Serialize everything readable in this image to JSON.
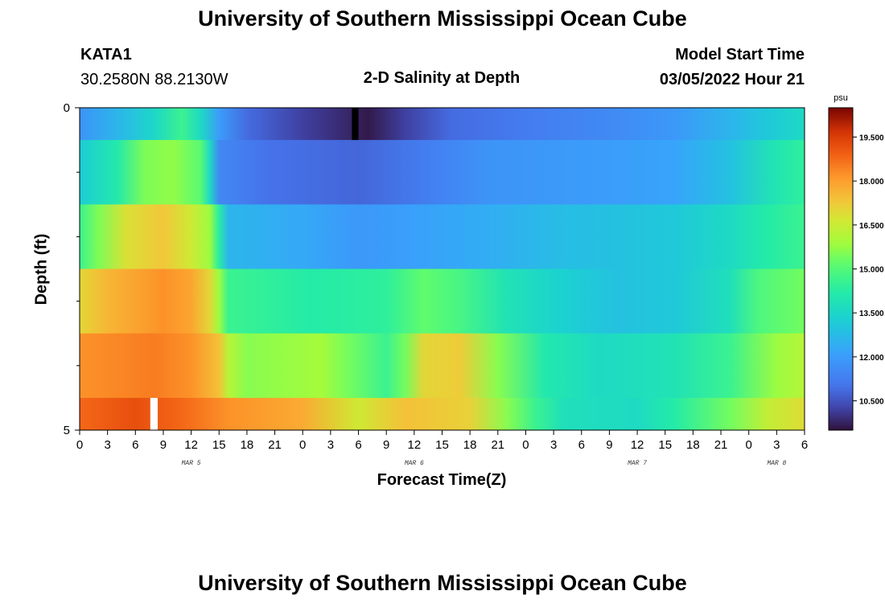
{
  "page": {
    "title": "University of Southern Mississippi Ocean Cube",
    "footer_title": "University of Southern Mississippi Ocean Cube"
  },
  "station": {
    "id": "KATA1",
    "coords": "30.2580N  88.2130W"
  },
  "model": {
    "label": "Model Start Time",
    "start": "03/05/2022 Hour 21"
  },
  "chart_data": {
    "type": "heatmap",
    "title": "2-D Salinity at Depth",
    "xlabel": "Forecast Time(Z)",
    "ylabel": "Depth (ft)",
    "y_tick_labels": [
      "0",
      "5"
    ],
    "ylim": [
      0,
      5
    ],
    "y_minor_ticks": [
      1,
      2,
      3,
      4
    ],
    "x_hours": [
      0,
      78
    ],
    "x_tick_labels": [
      "0",
      "3",
      "6",
      "9",
      "12",
      "15",
      "18",
      "21",
      "0",
      "3",
      "6",
      "9",
      "12",
      "15",
      "18",
      "21",
      "0",
      "3",
      "6",
      "9",
      "12",
      "15",
      "18",
      "21",
      "0",
      "3",
      "6"
    ],
    "day_labels": [
      {
        "label": "MAR 5",
        "hour": 12
      },
      {
        "label": "MAR 6",
        "hour": 36
      },
      {
        "label": "MAR 7",
        "hour": 60
      },
      {
        "label": "MAR 8",
        "hour": 75
      }
    ],
    "colorbar": {
      "unit": "psu",
      "min": 9.5,
      "max": 20.5,
      "tick_labels": [
        "19.500",
        "18.000",
        "16.500",
        "15.000",
        "13.500",
        "12.000",
        "10.500"
      ],
      "tick_values": [
        19.5,
        18.0,
        16.5,
        15.0,
        13.5,
        12.0,
        10.5
      ]
    },
    "layers": [
      {
        "depth_start": 0,
        "depth_end": 0.5,
        "keyframes": [
          [
            0,
            11.8
          ],
          [
            4,
            12.6
          ],
          [
            8,
            13.5
          ],
          [
            11,
            14.6
          ],
          [
            13,
            13.6
          ],
          [
            15,
            12.0
          ],
          [
            18,
            10.9
          ],
          [
            24,
            10.2
          ],
          [
            29,
            9.8
          ],
          [
            31,
            9.6
          ],
          [
            35,
            10.2
          ],
          [
            40,
            10.9
          ],
          [
            48,
            11.2
          ],
          [
            56,
            11.5
          ],
          [
            64,
            11.9
          ],
          [
            70,
            12.6
          ],
          [
            74,
            13.1
          ],
          [
            78,
            13.6
          ]
        ]
      },
      {
        "depth_start": 0.5,
        "depth_end": 1.5,
        "keyframes": [
          [
            0,
            13.2
          ],
          [
            4,
            14.1
          ],
          [
            7,
            15.5
          ],
          [
            10,
            15.7
          ],
          [
            13,
            15.1
          ],
          [
            14,
            13.6
          ],
          [
            15,
            11.5
          ],
          [
            20,
            11.0
          ],
          [
            30,
            10.8
          ],
          [
            38,
            11.3
          ],
          [
            44,
            11.8
          ],
          [
            56,
            12.0
          ],
          [
            64,
            12.2
          ],
          [
            70,
            12.9
          ],
          [
            75,
            14.0
          ],
          [
            78,
            14.4
          ]
        ]
      },
      {
        "depth_start": 1.5,
        "depth_end": 2.5,
        "keyframes": [
          [
            0,
            14.6
          ],
          [
            2,
            15.5
          ],
          [
            5,
            16.8
          ],
          [
            9,
            17.3
          ],
          [
            12,
            16.6
          ],
          [
            14,
            15.8
          ],
          [
            15,
            14.3
          ],
          [
            16,
            12.6
          ],
          [
            24,
            12.3
          ],
          [
            30,
            11.9
          ],
          [
            36,
            12.1
          ],
          [
            44,
            12.4
          ],
          [
            52,
            12.8
          ],
          [
            58,
            12.9
          ],
          [
            64,
            13.1
          ],
          [
            70,
            13.6
          ],
          [
            74,
            14.2
          ],
          [
            78,
            14.6
          ]
        ]
      },
      {
        "depth_start": 2.5,
        "depth_end": 3.5,
        "keyframes": [
          [
            0,
            17.0
          ],
          [
            3,
            17.6
          ],
          [
            9,
            18.2
          ],
          [
            12,
            17.9
          ],
          [
            14,
            17.0
          ],
          [
            15,
            15.8
          ],
          [
            16,
            14.6
          ],
          [
            25,
            14.2
          ],
          [
            33,
            14.4
          ],
          [
            37,
            15.2
          ],
          [
            41,
            14.8
          ],
          [
            46,
            13.9
          ],
          [
            52,
            13.3
          ],
          [
            58,
            12.9
          ],
          [
            64,
            13.1
          ],
          [
            70,
            13.8
          ],
          [
            73,
            14.9
          ],
          [
            78,
            15.4
          ]
        ]
      },
      {
        "depth_start": 3.5,
        "depth_end": 4.5,
        "keyframes": [
          [
            0,
            18.2
          ],
          [
            8,
            18.5
          ],
          [
            12,
            18.2
          ],
          [
            15,
            17.4
          ],
          [
            16,
            16.2
          ],
          [
            18,
            15.6
          ],
          [
            26,
            15.9
          ],
          [
            29,
            15.4
          ],
          [
            33,
            14.6
          ],
          [
            35,
            15.4
          ],
          [
            37,
            17.0
          ],
          [
            41,
            17.2
          ],
          [
            45,
            15.6
          ],
          [
            50,
            14.1
          ],
          [
            56,
            13.6
          ],
          [
            64,
            13.9
          ],
          [
            70,
            14.6
          ],
          [
            75,
            15.8
          ],
          [
            78,
            16.2
          ]
        ]
      },
      {
        "depth_start": 4.5,
        "depth_end": 5,
        "keyframes": [
          [
            0,
            18.8
          ],
          [
            6,
            19.2
          ],
          [
            11,
            18.8
          ],
          [
            16,
            18.2
          ],
          [
            24,
            17.8
          ],
          [
            30,
            16.6
          ],
          [
            35,
            17.4
          ],
          [
            42,
            17.1
          ],
          [
            46,
            15.6
          ],
          [
            49,
            14.6
          ],
          [
            52,
            13.8
          ],
          [
            60,
            13.6
          ],
          [
            64,
            14.2
          ],
          [
            70,
            15.4
          ],
          [
            74,
            16.4
          ],
          [
            78,
            16.9
          ]
        ]
      }
    ],
    "markers": [
      {
        "color": "#000000",
        "layer": 0,
        "hour_start": 29.3,
        "hour_end": 30.0
      },
      {
        "color": "#ffffff",
        "layer": 5,
        "hour_start": 7.6,
        "hour_end": 8.4
      }
    ]
  }
}
